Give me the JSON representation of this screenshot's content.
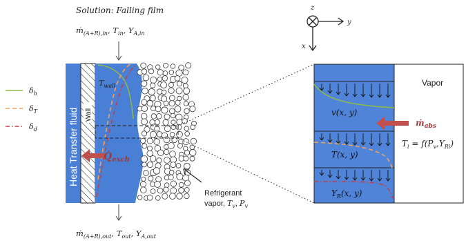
{
  "top": {
    "title": "Solution: Falling film",
    "inlet": "ṁ(A+R),in, Tin, YA,in"
  },
  "bottom": {
    "outlet": "ṁ(A+R),out, Tout, YA,out"
  },
  "legend": [
    {
      "label": "δh",
      "color": "#8db84a",
      "dash": "solid"
    },
    {
      "label": "δT",
      "color": "#f0a35b",
      "dash": "dash"
    },
    {
      "label": "δd",
      "color": "#c0404a",
      "dash": "dashdot"
    }
  ],
  "htf_label": "Heat Transfer fluid",
  "wall_label": "Wall",
  "twall_label": "Twall",
  "q_label": "Q̇exch",
  "refrigerant": {
    "line1": "Refrigerant",
    "line2": "vapor, Tv, Pv"
  },
  "axes": {
    "z": "z",
    "y": "y",
    "x": "x"
  },
  "zoom": {
    "vapor_label": "Vapor",
    "v_label": "v(x, y)",
    "t_label": "T(x, y)",
    "y_label": "YR(x, y)",
    "mabs_label": "ṁabs",
    "ti_label": "Ti = f(Pv,YRi)"
  },
  "colors": {
    "film": "#4a7fd6",
    "film_zoom": "#4f84d9",
    "arrow": "#c0504d",
    "green": "#8db84a",
    "orange": "#f0a35b",
    "red": "#c0404a"
  }
}
